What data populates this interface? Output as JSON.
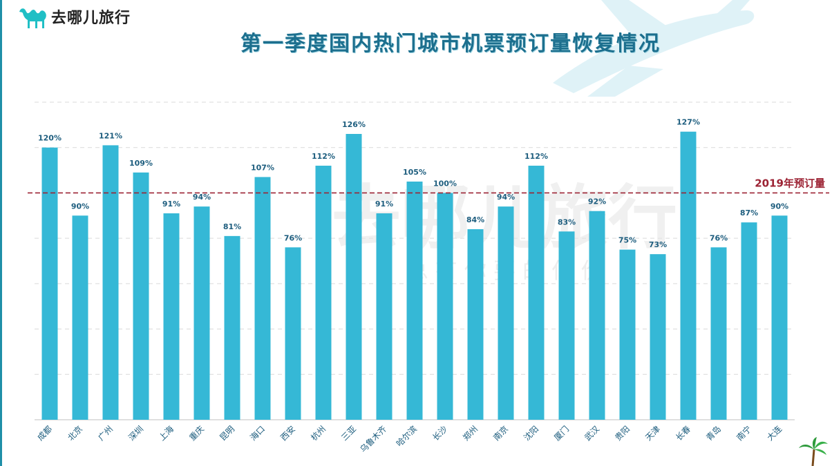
{
  "brand": {
    "name": "去哪儿旅行",
    "icon": "camel-logo-icon"
  },
  "watermark": {
    "main": "去哪儿旅行",
    "slogan": "总 有 你 要 的 低 价"
  },
  "colors": {
    "bar": "#35b8d6",
    "title": "#1c6f8e",
    "reference": "#9c2233",
    "label": "#1d5d7e"
  },
  "chart_data": {
    "type": "bar",
    "title": "第一季度国内热门城市机票预订量恢复情况",
    "xlabel": "",
    "ylabel": "",
    "ylim": [
      0,
      140
    ],
    "grid": true,
    "categories": [
      "成都",
      "北京",
      "广州",
      "深圳",
      "上海",
      "重庆",
      "昆明",
      "海口",
      "西安",
      "杭州",
      "三亚",
      "乌鲁木齐",
      "哈尔滨",
      "长沙",
      "郑州",
      "南京",
      "沈阳",
      "厦门",
      "武汉",
      "贵阳",
      "天津",
      "长春",
      "青岛",
      "南宁",
      "大连"
    ],
    "values": [
      120,
      90,
      121,
      109,
      91,
      94,
      81,
      107,
      76,
      112,
      126,
      91,
      105,
      100,
      84,
      94,
      112,
      83,
      92,
      75,
      73,
      127,
      76,
      87,
      90
    ],
    "value_labels": [
      "120%",
      "90%",
      "121%",
      "109%",
      "91%",
      "94%",
      "81%",
      "107%",
      "76%",
      "112%",
      "126%",
      "91%",
      "105%",
      "100%",
      "84%",
      "94%",
      "112%",
      "83%",
      "92%",
      "75%",
      "73%",
      "127%",
      "76%",
      "87%",
      "90%"
    ],
    "reference_line": {
      "value": 100,
      "label": "2019年预订量",
      "style": "dashed"
    }
  }
}
